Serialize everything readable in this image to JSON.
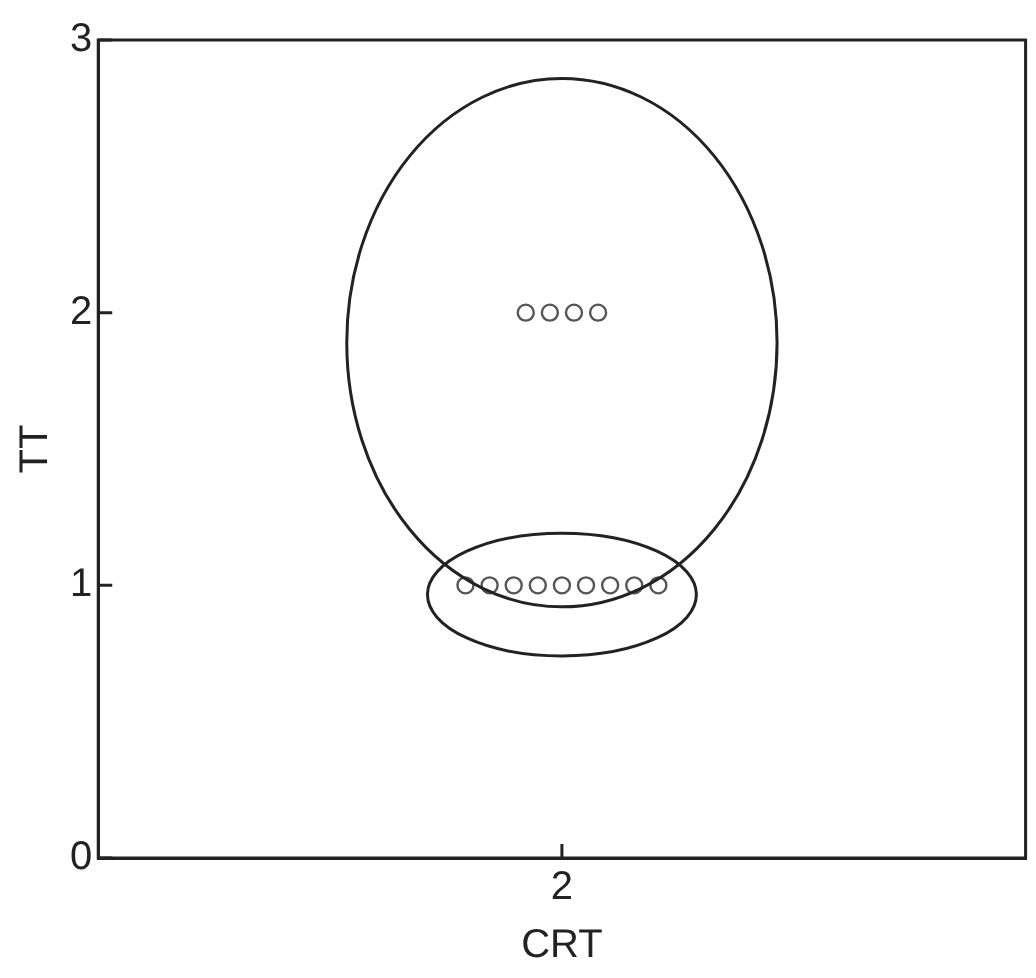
{
  "chart_data": {
    "type": "scatter",
    "xlabel": "CRT",
    "ylabel": "TT",
    "categories": [
      "2"
    ],
    "ylim": [
      0,
      3
    ],
    "yticks": [
      0,
      1,
      2,
      3
    ],
    "grid": false,
    "legend": false,
    "marker": "circle",
    "series": [
      {
        "color": "#555555",
        "x": [
          "2",
          "2",
          "2",
          "2",
          "2",
          "2",
          "2",
          "2",
          "2",
          "2",
          "2",
          "2",
          "2"
        ],
        "values": [
          2,
          2,
          2,
          2,
          1,
          1,
          1,
          1,
          1,
          1,
          1,
          1,
          1
        ]
      }
    ]
  }
}
